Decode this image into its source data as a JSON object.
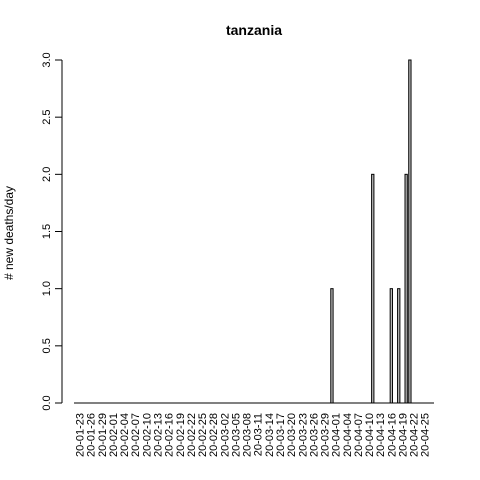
{
  "chart_data": {
    "type": "bar",
    "title": "tanzania",
    "xlabel": "",
    "ylabel": "# new deaths/day",
    "ylim": [
      0,
      3
    ],
    "yticks": [
      "0.0",
      "0.5",
      "1.0",
      "1.5",
      "2.0",
      "2.5",
      "3.0"
    ],
    "xtick_labels": [
      "20-01-23",
      "20-01-26",
      "20-01-29",
      "20-02-01",
      "20-02-04",
      "20-02-07",
      "20-02-10",
      "20-02-13",
      "20-02-16",
      "20-02-19",
      "20-02-22",
      "20-02-25",
      "20-02-28",
      "20-03-02",
      "20-03-05",
      "20-03-08",
      "20-03-11",
      "20-03-14",
      "20-03-17",
      "20-03-20",
      "20-03-23",
      "20-03-26",
      "20-03-29",
      "20-04-01",
      "20-04-04",
      "20-04-07",
      "20-04-10",
      "20-04-13",
      "20-04-16",
      "20-04-19",
      "20-04-22",
      "20-04-25"
    ],
    "categories": [
      "2020-01-22",
      "2020-01-23",
      "2020-01-24",
      "2020-01-25",
      "2020-01-26",
      "2020-01-27",
      "2020-01-28",
      "2020-01-29",
      "2020-01-30",
      "2020-01-31",
      "2020-02-01",
      "2020-02-02",
      "2020-02-03",
      "2020-02-04",
      "2020-02-05",
      "2020-02-06",
      "2020-02-07",
      "2020-02-08",
      "2020-02-09",
      "2020-02-10",
      "2020-02-11",
      "2020-02-12",
      "2020-02-13",
      "2020-02-14",
      "2020-02-15",
      "2020-02-16",
      "2020-02-17",
      "2020-02-18",
      "2020-02-19",
      "2020-02-20",
      "2020-02-21",
      "2020-02-22",
      "2020-02-23",
      "2020-02-24",
      "2020-02-25",
      "2020-02-26",
      "2020-02-27",
      "2020-02-28",
      "2020-02-29",
      "2020-03-01",
      "2020-03-02",
      "2020-03-03",
      "2020-03-04",
      "2020-03-05",
      "2020-03-06",
      "2020-03-07",
      "2020-03-08",
      "2020-03-09",
      "2020-03-10",
      "2020-03-11",
      "2020-03-12",
      "2020-03-13",
      "2020-03-14",
      "2020-03-15",
      "2020-03-16",
      "2020-03-17",
      "2020-03-18",
      "2020-03-19",
      "2020-03-20",
      "2020-03-21",
      "2020-03-22",
      "2020-03-23",
      "2020-03-24",
      "2020-03-25",
      "2020-03-26",
      "2020-03-27",
      "2020-03-28",
      "2020-03-29",
      "2020-03-30",
      "2020-03-31",
      "2020-04-01",
      "2020-04-02",
      "2020-04-03",
      "2020-04-04",
      "2020-04-05",
      "2020-04-06",
      "2020-04-07",
      "2020-04-08",
      "2020-04-09",
      "2020-04-10",
      "2020-04-11",
      "2020-04-12",
      "2020-04-13",
      "2020-04-14",
      "2020-04-15",
      "2020-04-16",
      "2020-04-17",
      "2020-04-18",
      "2020-04-19",
      "2020-04-20",
      "2020-04-21",
      "2020-04-22",
      "2020-04-23",
      "2020-04-24",
      "2020-04-25",
      "2020-04-26",
      "2020-04-27"
    ],
    "values": [
      0,
      0,
      0,
      0,
      0,
      0,
      0,
      0,
      0,
      0,
      0,
      0,
      0,
      0,
      0,
      0,
      0,
      0,
      0,
      0,
      0,
      0,
      0,
      0,
      0,
      0,
      0,
      0,
      0,
      0,
      0,
      0,
      0,
      0,
      0,
      0,
      0,
      0,
      0,
      0,
      0,
      0,
      0,
      0,
      0,
      0,
      0,
      0,
      0,
      0,
      0,
      0,
      0,
      0,
      0,
      0,
      0,
      0,
      0,
      0,
      0,
      0,
      0,
      0,
      0,
      0,
      0,
      0,
      0,
      1,
      0,
      0,
      0,
      0,
      0,
      0,
      0,
      0,
      0,
      0,
      2,
      0,
      0,
      0,
      0,
      1,
      0,
      1,
      0,
      2,
      3,
      0,
      0,
      0,
      0,
      0,
      0
    ],
    "grid": false,
    "legend": "none"
  }
}
